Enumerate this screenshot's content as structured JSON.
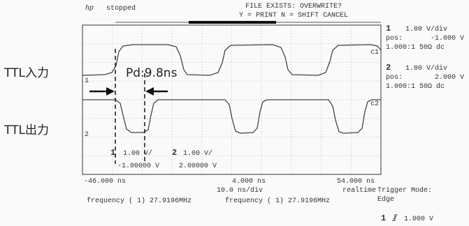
{
  "header": {
    "logo": "hp",
    "status": "stopped",
    "message": "FILE EXISTS: OVERWRITE?",
    "prompt": "Y = PRINT N = SHIFT CANCEL"
  },
  "labels": {
    "input": "TTL入力",
    "output": "TTL出力",
    "delay": "Pd:9.8ns"
  },
  "markers": {
    "c1": "c1",
    "c2": "c2",
    "ground1": "1",
    "ground2": "2"
  },
  "channels": [
    {
      "number": "1",
      "scale": "1.00 V/div",
      "pos_label": "pos:",
      "pos": "-1.000 V",
      "probe": "1.000:1 50Ω dc"
    },
    {
      "number": "2",
      "scale": "1.00 V/div",
      "pos_label": "pos:",
      "pos": "2.000 V",
      "probe": "1.000:1 50Ω dc"
    }
  ],
  "screen_readout": {
    "ch1": "1",
    "ch1_scale": "1.00 V/",
    "ch2": "2",
    "ch2_scale": "1.00 V/",
    "ch1_offset": "-1.00000 V",
    "ch2_offset": "2.00000 V"
  },
  "timebase": {
    "left": "-46.000 ns",
    "center": "4.000 ns",
    "right": "54.000 ns",
    "scale": "10.0 ns/div",
    "mode": "realtime",
    "trigger_label": "Trigger Mode:",
    "trigger_mode": "Edge"
  },
  "measurements": [
    "frequency ( 1) 27.9196MHz",
    "frequency ( 1) 27.9196MHz"
  ],
  "trigger": {
    "channel": "1",
    "level": "1.000 V"
  }
}
